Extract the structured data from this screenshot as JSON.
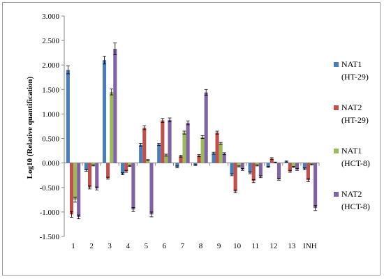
{
  "chart_data": {
    "type": "bar",
    "title": "",
    "xlabel": "",
    "ylabel": "Log10 (Relative quantification)",
    "ylim": [
      -1.5,
      3.0
    ],
    "yticks": [
      -1.5,
      -1.0,
      -0.5,
      0.0,
      0.5,
      1.0,
      1.5,
      2.0,
      2.5,
      3.0
    ],
    "ytick_labels": [
      "-1.500",
      "-1.000",
      "-0.500",
      "0.000",
      "0.500",
      "1.000",
      "1.500",
      "2.000",
      "2.500",
      "3.000"
    ],
    "grid": false,
    "legend_position": "right",
    "categories": [
      "1",
      "2",
      "3",
      "4",
      "5",
      "6",
      "7",
      "8",
      "9",
      "10",
      "11",
      "12",
      "13",
      "INH"
    ],
    "series": [
      {
        "name": "NAT1",
        "name_line2": "(HT-29)",
        "color": "#4a7ebb",
        "values": [
          1.9,
          -0.15,
          2.1,
          -0.22,
          0.37,
          0.38,
          -0.08,
          -0.04,
          0.2,
          -0.24,
          -0.2,
          -0.08,
          0.03,
          -0.12
        ],
        "errors": [
          0.08,
          0.02,
          0.08,
          0.02,
          0.03,
          0.02,
          0.02,
          0.01,
          0.02,
          0.02,
          0.02,
          0.01,
          0.01,
          0.02
        ]
      },
      {
        "name": "NAT2",
        "name_line2": "(HT-29)",
        "color": "#c0504d",
        "values": [
          -1.05,
          -0.5,
          -0.31,
          -0.17,
          0.72,
          0.87,
          0.14,
          0.15,
          0.62,
          -0.58,
          -0.37,
          0.09,
          -0.17,
          -0.35
        ],
        "errors": [
          0.06,
          0.03,
          0.02,
          0.02,
          0.04,
          0.04,
          0.02,
          0.02,
          0.03,
          0.03,
          0.03,
          0.02,
          0.02,
          0.03
        ]
      },
      {
        "name": "NAT1",
        "name_line2": "(HCT-8)",
        "color": "#9bbb59",
        "values": [
          -0.75,
          -0.05,
          1.45,
          -0.06,
          0.06,
          0.16,
          0.62,
          0.53,
          0.4,
          -0.07,
          -0.05,
          0.01,
          -0.08,
          -0.03
        ],
        "errors": [
          0.05,
          0.01,
          0.06,
          0.01,
          0.01,
          0.02,
          0.03,
          0.03,
          0.02,
          0.01,
          0.01,
          0.01,
          0.01,
          0.01
        ]
      },
      {
        "name": "NAT2",
        "name_line2": "(HCT-8)",
        "color": "#8064a2",
        "values": [
          -1.1,
          -0.52,
          2.33,
          -0.95,
          -1.05,
          0.88,
          0.82,
          1.44,
          0.19,
          -0.13,
          -0.28,
          -0.33,
          -0.13,
          -0.92
        ],
        "errors": [
          0.04,
          0.03,
          0.12,
          0.04,
          0.05,
          0.04,
          0.04,
          0.06,
          0.02,
          0.02,
          0.02,
          0.02,
          0.02,
          0.05
        ]
      }
    ]
  }
}
